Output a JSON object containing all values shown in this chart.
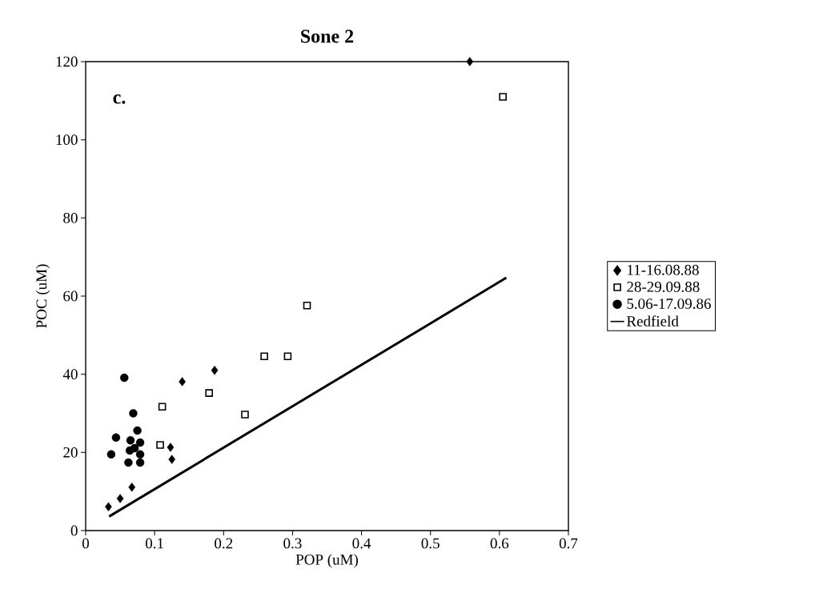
{
  "chart_data": {
    "type": "scatter",
    "title": "Sone 2",
    "xlabel": "POP (uM)",
    "ylabel": "POC (uM)",
    "annotations": [
      "c."
    ],
    "xlim": [
      0,
      0.7
    ],
    "xticks": [
      0,
      0.1,
      0.2,
      0.3,
      0.4,
      0.5,
      0.6,
      0.7
    ],
    "ylim": [
      0,
      120
    ],
    "yticks": [
      0,
      20,
      40,
      60,
      80,
      100,
      120
    ],
    "grid": false,
    "legend": "right",
    "series": [
      {
        "name": "11-16.08.88",
        "color": "#000000",
        "marker": "diamond",
        "x": [
          0.557,
          0.14,
          0.187,
          0.123,
          0.125,
          0.067,
          0.05,
          0.033
        ],
        "values": [
          120,
          38.1,
          41.0,
          21.3,
          18.2,
          11.1,
          8.2,
          6.1
        ]
      },
      {
        "name": "28-29.09.88",
        "color": "#000000",
        "marker": "square",
        "x": [
          0.605,
          0.321,
          0.259,
          0.293,
          0.179,
          0.111,
          0.231,
          0.108
        ],
        "values": [
          111,
          57.6,
          44.6,
          44.6,
          35.2,
          31.7,
          29.7,
          21.9
        ]
      },
      {
        "name": "5.06-17.09.86",
        "color": "#000000",
        "marker": "circle",
        "x": [
          0.056,
          0.069,
          0.044,
          0.075,
          0.037,
          0.065,
          0.079,
          0.064,
          0.079,
          0.062,
          0.079,
          0.071
        ],
        "values": [
          39.1,
          30.0,
          23.8,
          25.6,
          19.5,
          23.1,
          22.5,
          20.5,
          19.5,
          17.4,
          17.4,
          21.1
        ]
      },
      {
        "name": "Redfield",
        "type": "line",
        "color": "#000000",
        "marker": "none",
        "line_style": "solid",
        "x": [
          0.034,
          0.61
        ],
        "values": [
          3.6,
          64.7
        ]
      }
    ]
  }
}
